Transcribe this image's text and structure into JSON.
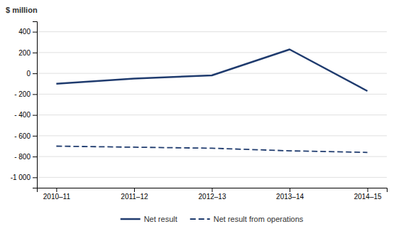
{
  "chart_data": {
    "type": "line",
    "y_label": "$ million",
    "categories": [
      "2010–11",
      "2011–12",
      "2012–13",
      "2013–14",
      "2014–15"
    ],
    "series": [
      {
        "name": "Net result",
        "color": "#1F3B6E",
        "line_style": "solid",
        "values": [
          -100,
          -50,
          -20,
          230,
          -170
        ]
      },
      {
        "name": "Net result from operations",
        "color": "#1F3B6E",
        "line_style": "dashed",
        "values": [
          -700,
          -710,
          -720,
          -745,
          -760
        ]
      }
    ],
    "ylim": [
      -1100,
      500
    ],
    "yticks": [
      {
        "value": -1000,
        "label": "-1 000"
      },
      {
        "value": -800,
        "label": "- 800"
      },
      {
        "value": -600,
        "label": "- 600"
      },
      {
        "value": -400,
        "label": "- 400"
      },
      {
        "value": -200,
        "label": "- 200"
      },
      0,
      200,
      400
    ],
    "grid": true,
    "legend": "bottom"
  }
}
